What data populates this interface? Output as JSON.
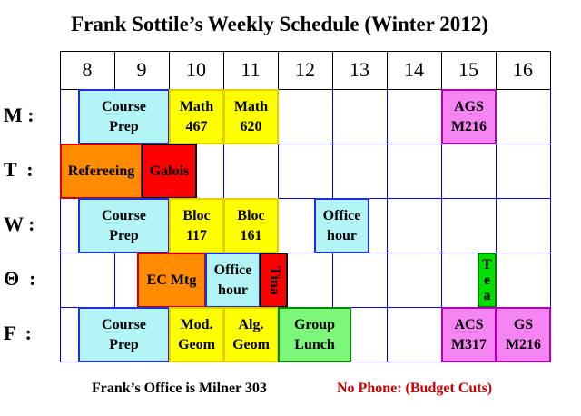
{
  "title": "Frank Sottile’s Weekly Schedule (Winter 2012)",
  "hours": [
    "8",
    "9",
    "10",
    "11",
    "12",
    "13",
    "14",
    "15",
    "16"
  ],
  "days": [
    {
      "key": "M",
      "label": "M :"
    },
    {
      "key": "T",
      "label": "T  :"
    },
    {
      "key": "W",
      "label": "W :"
    },
    {
      "key": "Th",
      "label": "Θ  :"
    },
    {
      "key": "F",
      "label": "F  :"
    }
  ],
  "colors": {
    "grid": "#0000ff",
    "prep": "#b3f4f7",
    "blue_border": "#1f2fe0",
    "yellow": "#ffff00",
    "yellow_border": "#e0c800",
    "orange": "#ff8c00",
    "red": "#ff0000",
    "magenta": "#f485f2",
    "green": "#7cf779",
    "tea_green": "#00e000"
  },
  "blocks": [
    {
      "day": 0,
      "start": 8.33,
      "end": 10.0,
      "label": "Course\nPrep",
      "fill": "prep",
      "border": "blue_border"
    },
    {
      "day": 0,
      "start": 10.0,
      "end": 11.0,
      "label": "Math\n467",
      "fill": "yellow",
      "border": "yellow_border"
    },
    {
      "day": 0,
      "start": 11.0,
      "end": 12.0,
      "label": "Math\n620",
      "fill": "yellow",
      "border": "yellow_border"
    },
    {
      "day": 0,
      "start": 15.0,
      "end": 16.0,
      "label": "AGS\nM216",
      "fill": "magenta",
      "border": "magenta"
    },
    {
      "day": 1,
      "start": 8.0,
      "end": 9.5,
      "label": "Refereeing",
      "fill": "orange",
      "border": "red"
    },
    {
      "day": 1,
      "start": 9.5,
      "end": 10.5,
      "label": "Galois",
      "fill": "red",
      "border": "red"
    },
    {
      "day": 2,
      "start": 8.33,
      "end": 10.0,
      "label": "Course\nPrep",
      "fill": "prep",
      "border": "blue_border"
    },
    {
      "day": 2,
      "start": 10.0,
      "end": 11.0,
      "label": "Bloc\n117",
      "fill": "yellow",
      "border": "yellow_border"
    },
    {
      "day": 2,
      "start": 11.0,
      "end": 12.0,
      "label": "Bloc\n161",
      "fill": "yellow",
      "border": "yellow_border"
    },
    {
      "day": 2,
      "start": 12.67,
      "end": 13.67,
      "label": "Office\nhour",
      "fill": "prep",
      "border": "blue_border"
    },
    {
      "day": 3,
      "start": 9.42,
      "end": 10.67,
      "label": "EC Mtg",
      "fill": "orange",
      "border": "red"
    },
    {
      "day": 3,
      "start": 10.67,
      "end": 11.67,
      "label": "Office\nhour",
      "fill": "prep",
      "border": "blue_border"
    },
    {
      "day": 3,
      "start": 11.67,
      "end": 12.17,
      "label": "Tina",
      "fill": "red",
      "border": "red",
      "vertical": "rotated"
    },
    {
      "day": 3,
      "start": 15.67,
      "end": 16.0,
      "label": "T\ne\na",
      "fill": "tea_green",
      "border": "tea_green",
      "vertical": "stacked"
    },
    {
      "day": 4,
      "start": 8.33,
      "end": 10.0,
      "label": "Course\nPrep",
      "fill": "prep",
      "border": "blue_border"
    },
    {
      "day": 4,
      "start": 10.0,
      "end": 11.0,
      "label": "Mod.\nGeom",
      "fill": "yellow",
      "border": "yellow_border"
    },
    {
      "day": 4,
      "start": 11.0,
      "end": 12.0,
      "label": "Alg.\nGeom",
      "fill": "yellow",
      "border": "yellow_border"
    },
    {
      "day": 4,
      "start": 12.0,
      "end": 13.33,
      "label": "Group\nLunch",
      "fill": "green",
      "border": "green"
    },
    {
      "day": 4,
      "start": 15.0,
      "end": 16.0,
      "label": "ACS\nM317",
      "fill": "magenta",
      "border": "magenta"
    },
    {
      "day": 4,
      "start": 16.0,
      "end": 17.0,
      "label": "GS\nM216",
      "fill": "magenta",
      "border": "magenta"
    }
  ],
  "footer": {
    "office": "Frank’s Office is Milner 303",
    "phone": "No Phone: (Budget Cuts)",
    "phone_color": "#cc0000"
  }
}
